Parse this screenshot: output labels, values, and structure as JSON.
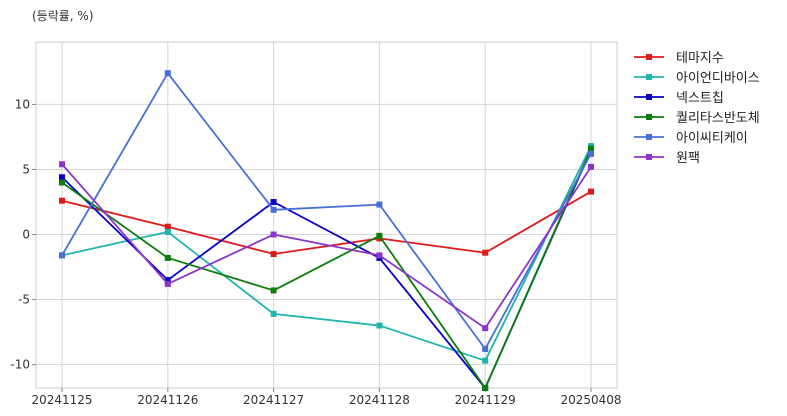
{
  "chart_data": {
    "type": "line",
    "unit_label": "(등락률, %)",
    "categories": [
      "20241125",
      "20241126",
      "20241127",
      "20241128",
      "20241129",
      "20250408"
    ],
    "ylim": [
      -11.8,
      14.8
    ],
    "yticks": [
      -10,
      -5,
      0,
      5,
      10
    ],
    "grid": true,
    "legend_position": "right",
    "series": [
      {
        "name": "테마지수",
        "color": "#e0191b",
        "values": [
          2.6,
          0.6,
          -1.5,
          -0.3,
          -1.4,
          3.3
        ]
      },
      {
        "name": "아이언디바이스",
        "color": "#22b5ad",
        "values": [
          -1.6,
          0.2,
          -6.1,
          -7.0,
          -9.7,
          6.8
        ]
      },
      {
        "name": "넥스트칩",
        "color": "#0a00c8",
        "values": [
          4.4,
          -3.5,
          2.5,
          -1.8,
          -11.8,
          6.5
        ]
      },
      {
        "name": "퀄리타스반도체",
        "color": "#0b7d0b",
        "values": [
          4.0,
          -1.8,
          -4.3,
          -0.1,
          -11.8,
          6.6
        ]
      },
      {
        "name": "아이씨티케이",
        "color": "#4a6fd8",
        "values": [
          -1.6,
          12.4,
          1.9,
          2.3,
          -8.8,
          6.2
        ]
      },
      {
        "name": "원팩",
        "color": "#8c36c9",
        "values": [
          5.4,
          -3.8,
          0.0,
          -1.6,
          -7.2,
          5.2
        ]
      }
    ]
  }
}
